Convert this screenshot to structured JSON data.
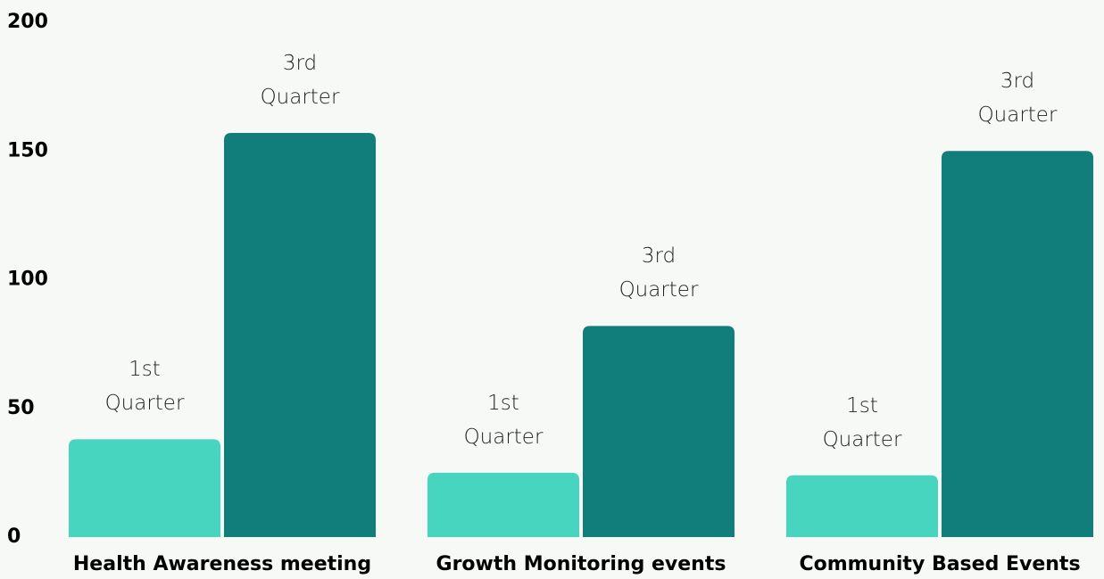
{
  "chart_data": {
    "type": "bar",
    "categories": [
      "Health Awareness meeting",
      "Growth Monitoring events",
      "Community Based Events"
    ],
    "series": [
      {
        "name": "1st Quarter",
        "color": "#48d5c0",
        "values": [
          38,
          25,
          24
        ]
      },
      {
        "name": "3rd Quarter",
        "color": "#117e7c",
        "values": [
          157,
          82,
          150
        ]
      }
    ],
    "ylim": [
      0,
      200
    ],
    "yticks": [
      0,
      50,
      100,
      150,
      200
    ],
    "grid": false
  }
}
